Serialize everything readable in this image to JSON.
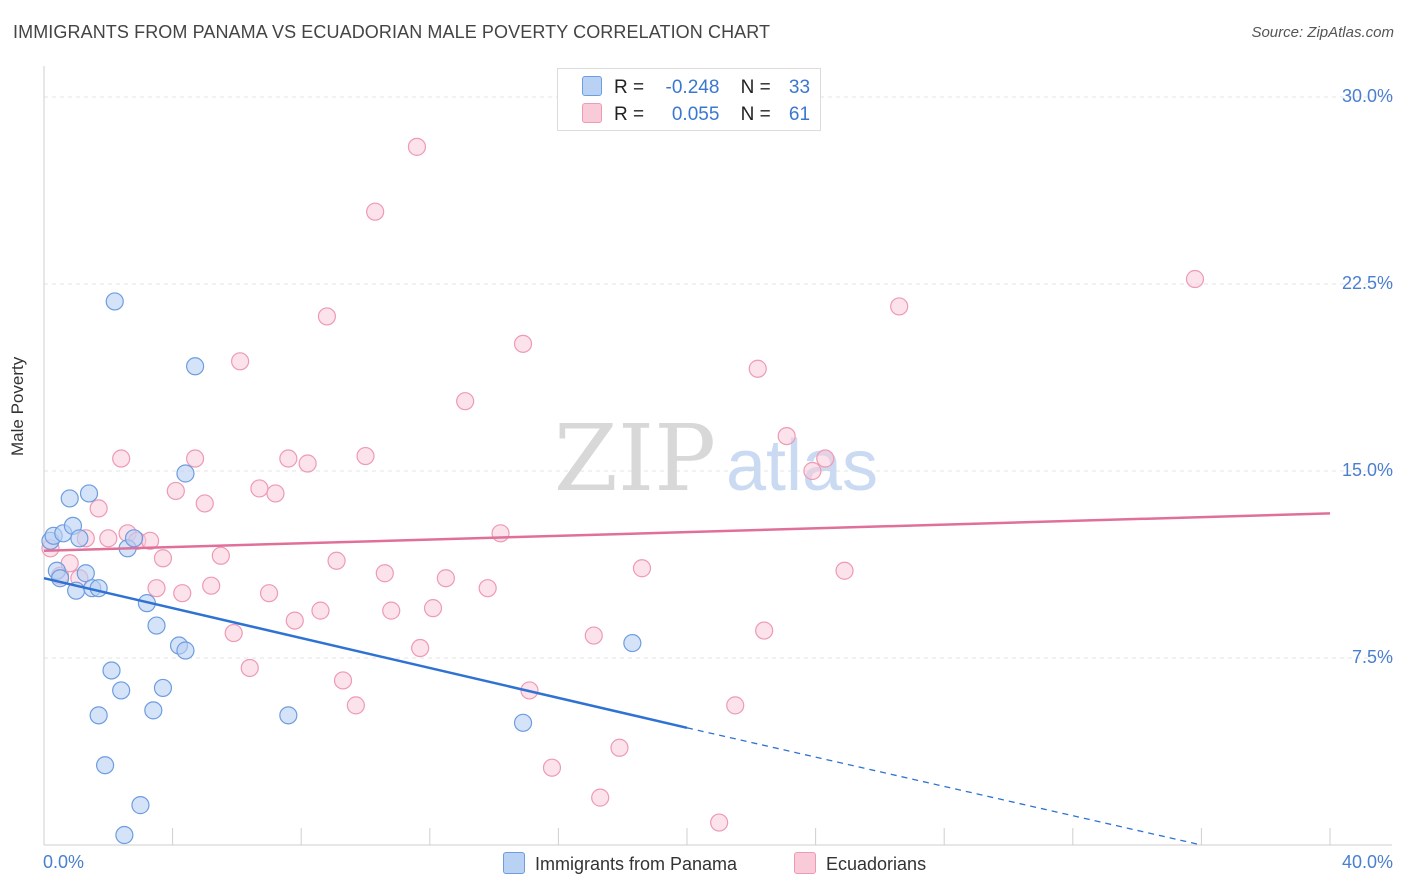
{
  "title": "IMMIGRANTS FROM PANAMA VS ECUADORIAN MALE POVERTY CORRELATION CHART",
  "source": "Source: ZipAtlas.com",
  "watermark": {
    "zip": "ZIP",
    "atlas": "atlas"
  },
  "legend": {
    "rows": [
      {
        "r_label": "R =",
        "r_value": "-0.248",
        "n_label": "N =",
        "n_value": "33"
      },
      {
        "r_label": "R =",
        "r_value": "0.055",
        "n_label": "N =",
        "n_value": "61"
      }
    ]
  },
  "bottom_legend": {
    "panama": "Immigrants from Panama",
    "ecuadorians": "Ecuadorians"
  },
  "colors": {
    "panama_fill": "#b9d1f3",
    "panama_stroke": "#6d9de0",
    "panama_line": "#2f72d3",
    "ecuador_fill": "#f9cad8",
    "ecuador_stroke": "#ee9ab4",
    "ecuador_line": "#e07099"
  },
  "chart_data": {
    "type": "scatter",
    "title": "IMMIGRANTS FROM PANAMA VS ECUADORIAN MALE POVERTY CORRELATION CHART",
    "xlabel": "",
    "ylabel": "Male Poverty",
    "xlim": [
      0,
      40
    ],
    "ylim": [
      0,
      30
    ],
    "x_tick_labels": [
      "0.0%",
      "40.0%"
    ],
    "y_ticks": [
      7.5,
      15.0,
      22.5,
      30.0
    ],
    "y_tick_labels": [
      "7.5%",
      "15.0%",
      "22.5%",
      "30.0%"
    ],
    "series": [
      {
        "name": "Immigrants from Panama",
        "points": [
          [
            0.2,
            12.2
          ],
          [
            0.3,
            12.4
          ],
          [
            0.4,
            11.0
          ],
          [
            0.5,
            10.7
          ],
          [
            0.6,
            12.5
          ],
          [
            0.8,
            13.9
          ],
          [
            0.9,
            12.8
          ],
          [
            1.0,
            10.2
          ],
          [
            1.1,
            12.3
          ],
          [
            1.3,
            10.9
          ],
          [
            1.4,
            14.1
          ],
          [
            1.5,
            10.3
          ],
          [
            1.7,
            10.3
          ],
          [
            1.7,
            5.2
          ],
          [
            1.9,
            3.2
          ],
          [
            2.1,
            7.0
          ],
          [
            2.2,
            21.8
          ],
          [
            2.4,
            6.2
          ],
          [
            2.5,
            0.4
          ],
          [
            2.6,
            11.9
          ],
          [
            2.8,
            12.3
          ],
          [
            3.0,
            1.6
          ],
          [
            3.2,
            9.7
          ],
          [
            3.4,
            5.4
          ],
          [
            3.5,
            8.8
          ],
          [
            3.7,
            6.3
          ],
          [
            4.2,
            8.0
          ],
          [
            4.4,
            7.8
          ],
          [
            4.4,
            14.9
          ],
          [
            4.7,
            19.2
          ],
          [
            7.6,
            5.2
          ],
          [
            14.9,
            4.9
          ],
          [
            18.3,
            8.1
          ]
        ],
        "trend": {
          "x0": 0.0,
          "y0": 10.7,
          "x1": 20.0,
          "y1": 4.7,
          "dash_to_x": 36.0,
          "dash_to_y": 0.0
        }
      },
      {
        "name": "Ecuadorians",
        "points": [
          [
            0.2,
            11.9
          ],
          [
            0.5,
            10.8
          ],
          [
            0.8,
            11.3
          ],
          [
            1.1,
            10.7
          ],
          [
            1.3,
            12.3
          ],
          [
            1.7,
            13.5
          ],
          [
            2.0,
            12.3
          ],
          [
            2.4,
            15.5
          ],
          [
            2.6,
            12.5
          ],
          [
            2.9,
            12.2
          ],
          [
            3.3,
            12.2
          ],
          [
            3.5,
            10.3
          ],
          [
            3.7,
            11.5
          ],
          [
            4.1,
            14.2
          ],
          [
            4.3,
            10.1
          ],
          [
            4.7,
            15.5
          ],
          [
            5.0,
            13.7
          ],
          [
            5.2,
            10.4
          ],
          [
            5.5,
            11.6
          ],
          [
            5.9,
            8.5
          ],
          [
            6.1,
            19.4
          ],
          [
            6.4,
            7.1
          ],
          [
            6.7,
            14.3
          ],
          [
            7.0,
            10.1
          ],
          [
            7.2,
            14.1
          ],
          [
            7.6,
            15.5
          ],
          [
            7.8,
            9.0
          ],
          [
            8.2,
            15.3
          ],
          [
            8.6,
            9.4
          ],
          [
            8.8,
            21.2
          ],
          [
            9.1,
            11.4
          ],
          [
            9.3,
            6.6
          ],
          [
            9.7,
            5.6
          ],
          [
            10.0,
            15.6
          ],
          [
            10.3,
            25.4
          ],
          [
            10.6,
            10.9
          ],
          [
            10.8,
            9.4
          ],
          [
            11.6,
            28.0
          ],
          [
            11.7,
            7.9
          ],
          [
            12.1,
            9.5
          ],
          [
            12.5,
            10.7
          ],
          [
            13.1,
            17.8
          ],
          [
            13.8,
            10.3
          ],
          [
            14.2,
            12.5
          ],
          [
            14.9,
            20.1
          ],
          [
            15.1,
            6.2
          ],
          [
            15.8,
            3.1
          ],
          [
            17.1,
            8.4
          ],
          [
            17.3,
            1.9
          ],
          [
            17.9,
            3.9
          ],
          [
            18.6,
            11.1
          ],
          [
            21.0,
            0.9
          ],
          [
            21.5,
            5.6
          ],
          [
            22.2,
            19.1
          ],
          [
            22.4,
            8.6
          ],
          [
            23.1,
            16.4
          ],
          [
            23.9,
            15.0
          ],
          [
            24.3,
            15.5
          ],
          [
            24.9,
            11.0
          ],
          [
            26.6,
            21.6
          ],
          [
            35.8,
            22.7
          ]
        ],
        "trend": {
          "x0": 0.0,
          "y0": 11.8,
          "x1": 40.0,
          "y1": 13.3
        }
      }
    ]
  }
}
